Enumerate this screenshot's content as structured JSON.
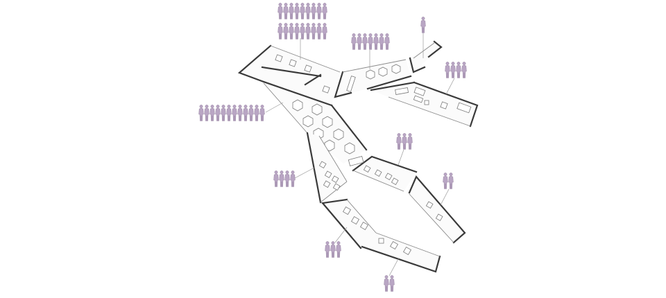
{
  "diagram": {
    "accent_person_color": "#b9a6c4",
    "wall_color": "#3a3a3a",
    "zones": [
      {
        "id": "top-left-wing",
        "occupancy": 20
      },
      {
        "id": "top-middle-wing",
        "occupancy": 8
      },
      {
        "id": "top-right-nook",
        "occupancy": 1
      },
      {
        "id": "right-lounge-wing",
        "occupancy": 4
      },
      {
        "id": "central-dining-hall",
        "occupancy": 13
      },
      {
        "id": "left-lower-wing",
        "occupancy": 4
      },
      {
        "id": "middle-office-wing",
        "occupancy": 3
      },
      {
        "id": "right-lower-wing",
        "occupancy": 2
      },
      {
        "id": "bottom-left-wing",
        "occupancy": 3
      },
      {
        "id": "bottom-wing",
        "occupancy": 2
      }
    ]
  }
}
